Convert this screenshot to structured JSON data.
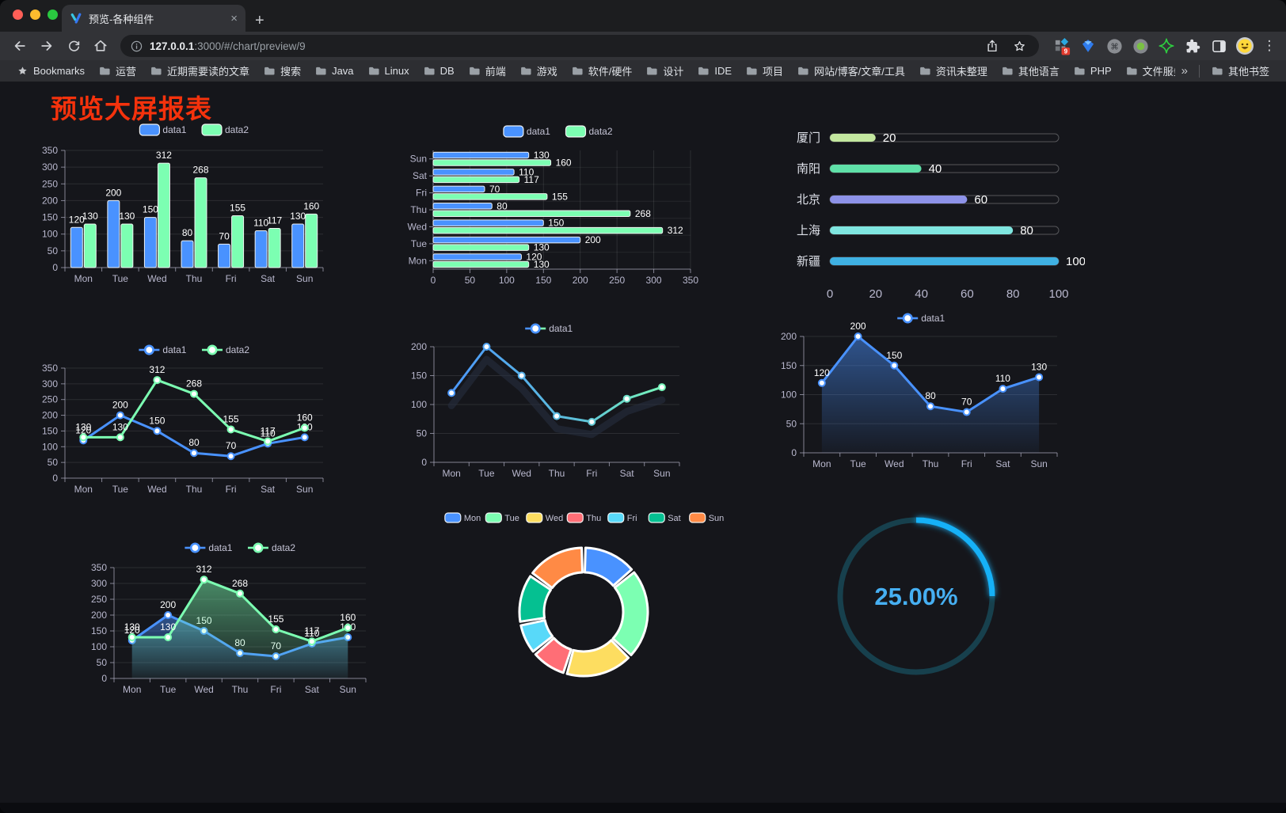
{
  "browser": {
    "tab": {
      "title": "预览-各种组件",
      "close": "×"
    },
    "new_tab": "+",
    "url": {
      "host": "127.0.0.1",
      "rest": ":3000/#/chart/preview/9"
    },
    "extension_badge": "9",
    "menu": "⋮"
  },
  "bookmarks": {
    "root_label": "Bookmarks",
    "items": [
      "运营",
      "近期需要读的文章",
      "搜索",
      "Java",
      "Linux",
      "DB",
      "前端",
      "游戏",
      "软件/硬件",
      "设计",
      "IDE",
      "项目",
      "网站/博客/文章/工具",
      "资讯未整理",
      "其他语言",
      "PHP",
      "文件服务器"
    ],
    "overflow": "»",
    "other_label": "其他书签"
  },
  "page": {
    "title": "预览大屏报表",
    "title_color": "#f5320c",
    "background": "#15161b"
  },
  "chart_data": [
    {
      "id": "bar-vertical",
      "type": "bar",
      "orientation": "vertical",
      "categories": [
        "Mon",
        "Tue",
        "Wed",
        "Thu",
        "Fri",
        "Sat",
        "Sun"
      ],
      "series": [
        {
          "name": "data1",
          "color": "#4992ff",
          "values": [
            120,
            200,
            150,
            80,
            70,
            110,
            130
          ]
        },
        {
          "name": "data2",
          "color": "#7cffb2",
          "values": [
            130,
            130,
            312,
            268,
            155,
            117,
            160
          ]
        }
      ],
      "ylim": [
        0,
        350
      ],
      "yticks": [
        0,
        50,
        100,
        150,
        200,
        250,
        300,
        350
      ],
      "legend_position": "top",
      "value_labels": true,
      "grid": true
    },
    {
      "id": "bar-horizontal",
      "type": "bar",
      "orientation": "horizontal",
      "categories": [
        "Mon",
        "Tue",
        "Wed",
        "Thu",
        "Fri",
        "Sat",
        "Sun"
      ],
      "series": [
        {
          "name": "data1",
          "color": "#4992ff",
          "values": [
            120,
            200,
            150,
            80,
            70,
            110,
            130
          ]
        },
        {
          "name": "data2",
          "color": "#7cffb2",
          "values": [
            130,
            130,
            312,
            268,
            155,
            117,
            160
          ]
        }
      ],
      "xlim": [
        0,
        350
      ],
      "xticks": [
        0,
        50,
        100,
        150,
        200,
        250,
        300,
        350
      ],
      "legend_position": "top",
      "value_labels": true,
      "grid": true
    },
    {
      "id": "progress-list",
      "type": "bar",
      "orientation": "horizontal",
      "style": "progress",
      "rows": [
        {
          "label": "厦门",
          "value": 20,
          "color": "#c3e79f"
        },
        {
          "label": "南阳",
          "value": 40,
          "color": "#5fe0a8"
        },
        {
          "label": "北京",
          "value": 60,
          "color": "#8d92e8"
        },
        {
          "label": "上海",
          "value": 80,
          "color": "#7fe6e0"
        },
        {
          "label": "新疆",
          "value": 100,
          "color": "#3fb1e3"
        }
      ],
      "xlim": [
        0,
        100
      ],
      "xticks": [
        0,
        20,
        40,
        60,
        80,
        100
      ],
      "value_labels": true
    },
    {
      "id": "line-two-series",
      "type": "line",
      "categories": [
        "Mon",
        "Tue",
        "Wed",
        "Thu",
        "Fri",
        "Sat",
        "Sun"
      ],
      "series": [
        {
          "name": "data1",
          "color": "#4992ff",
          "values": [
            120,
            200,
            150,
            80,
            70,
            110,
            130
          ]
        },
        {
          "name": "data2",
          "color": "#7cffb2",
          "values": [
            130,
            130,
            312,
            268,
            155,
            117,
            160
          ]
        }
      ],
      "ylim": [
        0,
        350
      ],
      "yticks": [
        0,
        50,
        100,
        150,
        200,
        250,
        300,
        350
      ],
      "legend_position": "top",
      "value_labels": true,
      "markers": true
    },
    {
      "id": "line-gradient",
      "type": "line",
      "categories": [
        "Mon",
        "Tue",
        "Wed",
        "Thu",
        "Fri",
        "Sat",
        "Sun"
      ],
      "series": [
        {
          "name": "data1",
          "gradient": [
            "#4992ff",
            "#7cffb2"
          ],
          "values": [
            120,
            200,
            150,
            80,
            70,
            110,
            130
          ]
        }
      ],
      "ylim": [
        0,
        200
      ],
      "yticks": [
        0,
        50,
        100,
        150,
        200
      ],
      "legend_position": "top",
      "value_labels": false,
      "markers": true
    },
    {
      "id": "area-single",
      "type": "area",
      "categories": [
        "Mon",
        "Tue",
        "Wed",
        "Thu",
        "Fri",
        "Sat",
        "Sun"
      ],
      "series": [
        {
          "name": "data1",
          "color": "#4992ff",
          "values": [
            120,
            200,
            150,
            80,
            70,
            110,
            130
          ]
        }
      ],
      "ylim": [
        0,
        200
      ],
      "yticks": [
        0,
        50,
        100,
        150,
        200
      ],
      "legend_position": "top",
      "value_labels": true,
      "markers": true
    },
    {
      "id": "area-two-series",
      "type": "area",
      "categories": [
        "Mon",
        "Tue",
        "Wed",
        "Thu",
        "Fri",
        "Sat",
        "Sun"
      ],
      "series": [
        {
          "name": "data1",
          "color": "#4992ff",
          "values": [
            120,
            200,
            150,
            80,
            70,
            110,
            130
          ]
        },
        {
          "name": "data2",
          "color": "#7cffb2",
          "values": [
            130,
            130,
            312,
            268,
            155,
            117,
            160
          ]
        }
      ],
      "ylim": [
        0,
        350
      ],
      "yticks": [
        0,
        50,
        100,
        150,
        200,
        250,
        300,
        350
      ],
      "legend_position": "top",
      "value_labels": true,
      "markers": true
    },
    {
      "id": "donut",
      "type": "pie",
      "labels": [
        "Mon",
        "Tue",
        "Wed",
        "Thu",
        "Fri",
        "Sat",
        "Sun"
      ],
      "values": [
        120,
        200,
        150,
        80,
        70,
        110,
        130
      ],
      "colors": [
        "#4992ff",
        "#7cffb2",
        "#fddd60",
        "#ff6e76",
        "#58d9f9",
        "#05c091",
        "#ff8a45"
      ],
      "inner_radius_ratio": 0.62,
      "legend_position": "top"
    },
    {
      "id": "gauge",
      "type": "gauge",
      "value": 25,
      "max": 100,
      "display": "25.00%",
      "arc_color": "#12b1f7",
      "track_color": "#17404d",
      "text_color": "#46aff2"
    }
  ]
}
